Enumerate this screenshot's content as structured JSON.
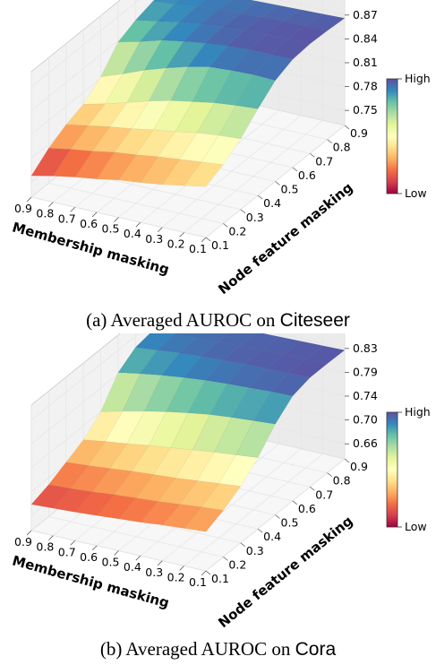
{
  "chart_data": [
    {
      "type": "surface3d",
      "caption_prefix": "(a) Averaged AUROC on ",
      "caption_dataset": "Citeseer",
      "xlabel": "Membership masking",
      "ylabel": "Node feature masking",
      "x_ticks": [
        "0.9",
        "0.8",
        "0.7",
        "0.6",
        "0.5",
        "0.4",
        "0.3",
        "0.2",
        "0.1"
      ],
      "y_ticks": [
        "0.1",
        "0.2",
        "0.3",
        "0.4",
        "0.5",
        "0.6",
        "0.7",
        "0.8",
        "0.9"
      ],
      "z_ticks": [
        "0.75",
        "0.78",
        "0.81",
        "0.84",
        "0.87"
      ],
      "zlim": [
        0.75,
        0.87
      ],
      "colorbar_high": "High",
      "colorbar_low": "Low",
      "colormap": "Spectral",
      "membership_masking": [
        0.9,
        0.8,
        0.7,
        0.6,
        0.5,
        0.4,
        0.3,
        0.2,
        0.1
      ],
      "node_feature_masking": [
        0.9,
        0.8,
        0.7,
        0.6,
        0.5,
        0.4,
        0.3,
        0.2,
        0.1
      ],
      "z": [
        [
          0.856,
          0.858,
          0.859,
          0.861,
          0.862,
          0.863,
          0.864,
          0.865,
          0.866
        ],
        [
          0.854,
          0.857,
          0.86,
          0.863,
          0.864,
          0.866,
          0.867,
          0.868,
          0.868
        ],
        [
          0.848,
          0.853,
          0.858,
          0.862,
          0.865,
          0.867,
          0.868,
          0.869,
          0.869
        ],
        [
          0.838,
          0.845,
          0.853,
          0.858,
          0.862,
          0.865,
          0.867,
          0.867,
          0.867
        ],
        [
          0.812,
          0.822,
          0.833,
          0.842,
          0.85,
          0.856,
          0.858,
          0.859,
          0.858
        ],
        [
          0.795,
          0.802,
          0.81,
          0.818,
          0.825,
          0.83,
          0.835,
          0.838,
          0.84
        ],
        [
          0.787,
          0.792,
          0.797,
          0.801,
          0.806,
          0.81,
          0.815,
          0.818,
          0.82
        ],
        [
          0.775,
          0.78,
          0.784,
          0.789,
          0.792,
          0.796,
          0.799,
          0.802,
          0.805
        ],
        [
          0.758,
          0.764,
          0.769,
          0.773,
          0.778,
          0.781,
          0.785,
          0.79,
          0.795
        ]
      ]
    },
    {
      "type": "surface3d",
      "caption_prefix": "(b) Averaged AUROC on ",
      "caption_dataset": "Cora",
      "xlabel": "Membership masking",
      "ylabel": "Node feature masking",
      "x_ticks": [
        "0.9",
        "0.8",
        "0.7",
        "0.6",
        "0.5",
        "0.4",
        "0.3",
        "0.2",
        "0.1"
      ],
      "y_ticks": [
        "0.1",
        "0.2",
        "0.3",
        "0.4",
        "0.5",
        "0.6",
        "0.7",
        "0.8",
        "0.9"
      ],
      "z_ticks": [
        "0.66",
        "0.70",
        "0.74",
        "0.79",
        "0.83"
      ],
      "zlim": [
        0.66,
        0.83
      ],
      "colorbar_high": "High",
      "colorbar_low": "Low",
      "colormap": "Spectral",
      "membership_masking": [
        0.9,
        0.8,
        0.7,
        0.6,
        0.5,
        0.4,
        0.3,
        0.2,
        0.1
      ],
      "node_feature_masking": [
        0.9,
        0.8,
        0.7,
        0.6,
        0.5,
        0.4,
        0.3,
        0.2,
        0.1
      ],
      "z": [
        [
          0.818,
          0.82,
          0.821,
          0.822,
          0.823,
          0.824,
          0.825,
          0.826,
          0.827
        ],
        [
          0.815,
          0.818,
          0.82,
          0.822,
          0.824,
          0.825,
          0.826,
          0.827,
          0.828
        ],
        [
          0.81,
          0.814,
          0.818,
          0.821,
          0.823,
          0.825,
          0.826,
          0.827,
          0.828
        ],
        [
          0.79,
          0.797,
          0.803,
          0.808,
          0.812,
          0.815,
          0.817,
          0.819,
          0.82
        ],
        [
          0.745,
          0.755,
          0.764,
          0.772,
          0.779,
          0.785,
          0.789,
          0.792,
          0.795
        ],
        [
          0.72,
          0.726,
          0.731,
          0.737,
          0.742,
          0.747,
          0.752,
          0.756,
          0.76
        ],
        [
          0.705,
          0.708,
          0.712,
          0.716,
          0.719,
          0.722,
          0.726,
          0.73,
          0.734
        ],
        [
          0.69,
          0.692,
          0.695,
          0.699,
          0.702,
          0.705,
          0.709,
          0.713,
          0.716
        ],
        [
          0.68,
          0.682,
          0.684,
          0.687,
          0.69,
          0.693,
          0.697,
          0.7,
          0.703
        ]
      ]
    }
  ]
}
